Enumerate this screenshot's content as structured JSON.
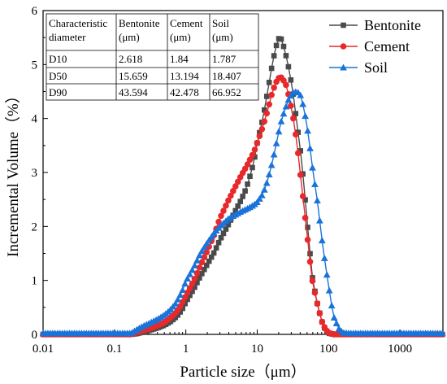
{
  "chart_data": {
    "type": "line",
    "xlabel": "Particle size（μm）",
    "ylabel": "Incremental Volume（%）",
    "xscale": "log",
    "xlim": [
      0.01,
      4000
    ],
    "ylim": [
      0,
      6
    ],
    "x_ticks": [
      "0.01",
      "0.1",
      "1",
      "10",
      "100",
      "1000"
    ],
    "y_ticks": [
      "0",
      "1",
      "2",
      "3",
      "4",
      "5",
      "6"
    ],
    "legend_position": "top-right",
    "series": [
      {
        "name": "Bentonite",
        "color": "#4a4a4a",
        "marker": "square",
        "points": [
          [
            0.01,
            0
          ],
          [
            0.1,
            0
          ],
          [
            0.17,
            0
          ],
          [
            0.2,
            0.01
          ],
          [
            0.25,
            0.04
          ],
          [
            0.3,
            0.07
          ],
          [
            0.4,
            0.12
          ],
          [
            0.5,
            0.17
          ],
          [
            0.6,
            0.23
          ],
          [
            0.7,
            0.3
          ],
          [
            0.8,
            0.38
          ],
          [
            0.9,
            0.48
          ],
          [
            1,
            0.6
          ],
          [
            1.3,
            0.85
          ],
          [
            1.6,
            1.08
          ],
          [
            2,
            1.3
          ],
          [
            2.5,
            1.52
          ],
          [
            3,
            1.75
          ],
          [
            4,
            2.05
          ],
          [
            5,
            2.3
          ],
          [
            6,
            2.5
          ],
          [
            7,
            2.7
          ],
          [
            8,
            2.95
          ],
          [
            9,
            3.2
          ],
          [
            10,
            3.55
          ],
          [
            12,
            4.0
          ],
          [
            14,
            4.5
          ],
          [
            16,
            4.95
          ],
          [
            18,
            5.3
          ],
          [
            20,
            5.48
          ],
          [
            22,
            5.47
          ],
          [
            25,
            5.2
          ],
          [
            28,
            4.9
          ],
          [
            32,
            4.45
          ],
          [
            36,
            3.9
          ],
          [
            40,
            3.45
          ],
          [
            45,
            2.8
          ],
          [
            50,
            2.1
          ],
          [
            55,
            1.5
          ],
          [
            60,
            1.0
          ],
          [
            70,
            0.55
          ],
          [
            80,
            0.25
          ],
          [
            90,
            0.08
          ],
          [
            100,
            0.02
          ],
          [
            120,
            0
          ],
          [
            4000,
            0
          ]
        ]
      },
      {
        "name": "Cement",
        "color": "#e8282a",
        "marker": "circle",
        "points": [
          [
            0.01,
            0
          ],
          [
            0.1,
            0
          ],
          [
            0.17,
            0
          ],
          [
            0.2,
            0.03
          ],
          [
            0.25,
            0.07
          ],
          [
            0.3,
            0.1
          ],
          [
            0.4,
            0.16
          ],
          [
            0.5,
            0.22
          ],
          [
            0.6,
            0.3
          ],
          [
            0.7,
            0.38
          ],
          [
            0.8,
            0.48
          ],
          [
            0.9,
            0.6
          ],
          [
            1,
            0.72
          ],
          [
            1.3,
            1.0
          ],
          [
            1.6,
            1.28
          ],
          [
            2,
            1.55
          ],
          [
            2.5,
            1.85
          ],
          [
            3,
            2.15
          ],
          [
            4,
            2.5
          ],
          [
            5,
            2.75
          ],
          [
            6,
            2.95
          ],
          [
            7,
            3.1
          ],
          [
            8,
            3.25
          ],
          [
            9,
            3.38
          ],
          [
            10,
            3.55
          ],
          [
            12,
            3.85
          ],
          [
            14,
            4.15
          ],
          [
            16,
            4.45
          ],
          [
            18,
            4.65
          ],
          [
            20,
            4.75
          ],
          [
            22,
            4.76
          ],
          [
            25,
            4.65
          ],
          [
            28,
            4.4
          ],
          [
            32,
            4.0
          ],
          [
            36,
            3.55
          ],
          [
            40,
            3.0
          ],
          [
            45,
            2.4
          ],
          [
            50,
            1.85
          ],
          [
            55,
            1.35
          ],
          [
            60,
            0.95
          ],
          [
            70,
            0.55
          ],
          [
            80,
            0.25
          ],
          [
            90,
            0.1
          ],
          [
            100,
            0.03
          ],
          [
            120,
            0
          ],
          [
            4000,
            0
          ]
        ]
      },
      {
        "name": "Soil",
        "color": "#1a73d8",
        "marker": "triangle",
        "points": [
          [
            0.01,
            0.02
          ],
          [
            0.1,
            0.02
          ],
          [
            0.17,
            0.02
          ],
          [
            0.2,
            0.08
          ],
          [
            0.25,
            0.15
          ],
          [
            0.3,
            0.2
          ],
          [
            0.4,
            0.28
          ],
          [
            0.5,
            0.36
          ],
          [
            0.6,
            0.45
          ],
          [
            0.7,
            0.55
          ],
          [
            0.8,
            0.68
          ],
          [
            0.9,
            0.82
          ],
          [
            1,
            0.98
          ],
          [
            1.3,
            1.25
          ],
          [
            1.6,
            1.5
          ],
          [
            2,
            1.7
          ],
          [
            2.5,
            1.88
          ],
          [
            3,
            2.0
          ],
          [
            4,
            2.15
          ],
          [
            5,
            2.22
          ],
          [
            6,
            2.28
          ],
          [
            7,
            2.32
          ],
          [
            8,
            2.36
          ],
          [
            9,
            2.4
          ],
          [
            10,
            2.45
          ],
          [
            12,
            2.6
          ],
          [
            14,
            2.85
          ],
          [
            16,
            3.15
          ],
          [
            18,
            3.45
          ],
          [
            20,
            3.75
          ],
          [
            22,
            3.98
          ],
          [
            25,
            4.2
          ],
          [
            28,
            4.38
          ],
          [
            32,
            4.48
          ],
          [
            36,
            4.5
          ],
          [
            40,
            4.45
          ],
          [
            45,
            4.2
          ],
          [
            50,
            3.85
          ],
          [
            55,
            3.45
          ],
          [
            60,
            3.05
          ],
          [
            70,
            2.45
          ],
          [
            80,
            1.8
          ],
          [
            90,
            1.3
          ],
          [
            100,
            0.9
          ],
          [
            110,
            0.55
          ],
          [
            120,
            0.3
          ],
          [
            140,
            0.1
          ],
          [
            160,
            0.03
          ],
          [
            200,
            0.02
          ],
          [
            4000,
            0.02
          ]
        ]
      }
    ],
    "table": {
      "headers": [
        "Characteristic diameter",
        "Bentonite (μm)",
        "Cement (μm)",
        "Soil (μm)"
      ],
      "header_lines": [
        [
          "Characteristic",
          "diameter"
        ],
        [
          "Bentonite",
          "(μm)"
        ],
        [
          "Cement",
          "(μm)"
        ],
        [
          "Soil",
          "(μm)"
        ]
      ],
      "rows": [
        [
          "D10",
          "2.618",
          "1.84",
          "1.787"
        ],
        [
          "D50",
          "15.659",
          "13.194",
          "18.407"
        ],
        [
          "D90",
          "43.594",
          "42.478",
          "66.952"
        ]
      ]
    }
  }
}
